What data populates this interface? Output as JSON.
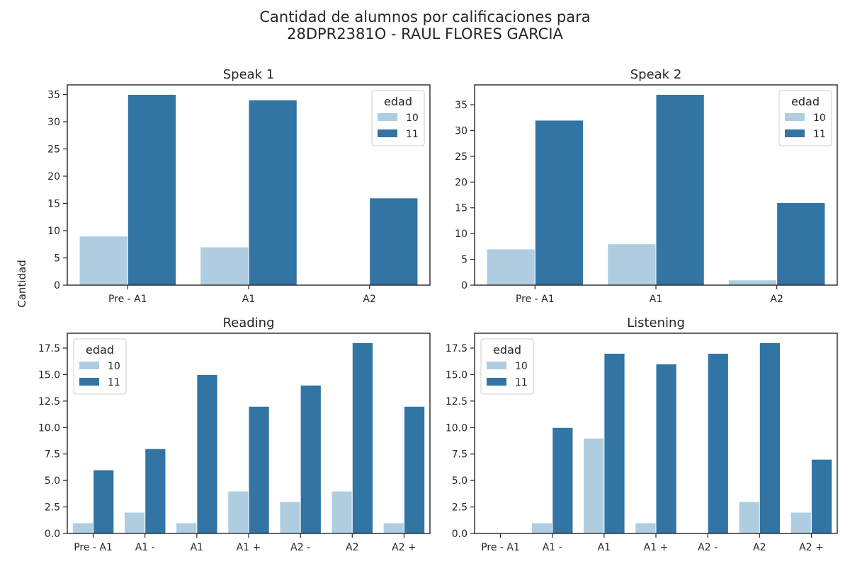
{
  "figure": {
    "title_line1": "Cantidad de alumnos por calificaciones para",
    "title_line2": "28DPR2381O - RAUL FLORES GARCIA",
    "ylabel": "Cantidad"
  },
  "colors": {
    "age_10": "#aecde1",
    "age_11": "#3274a4"
  },
  "chart_data": [
    {
      "type": "bar",
      "title": "Speak 1",
      "categories": [
        "Pre - A1",
        "A1",
        "A2"
      ],
      "series": [
        {
          "name": "10",
          "values": [
            9,
            7,
            0
          ]
        },
        {
          "name": "11",
          "values": [
            35,
            34,
            16
          ]
        }
      ],
      "ylim": [
        0,
        36.75
      ],
      "yticks": [
        0,
        5,
        10,
        15,
        20,
        25,
        30,
        35
      ],
      "legend_title": "edad",
      "legend_position": "top-right"
    },
    {
      "type": "bar",
      "title": "Speak 2",
      "categories": [
        "Pre - A1",
        "A1",
        "A2"
      ],
      "series": [
        {
          "name": "10",
          "values": [
            7,
            8,
            1
          ]
        },
        {
          "name": "11",
          "values": [
            32,
            37,
            16
          ]
        }
      ],
      "ylim": [
        0,
        38.85
      ],
      "yticks": [
        0,
        5,
        10,
        15,
        20,
        25,
        30,
        35
      ],
      "legend_title": "edad",
      "legend_position": "top-right"
    },
    {
      "type": "bar",
      "title": "Reading",
      "categories": [
        "Pre - A1",
        "A1 -",
        "A1",
        "A1 +",
        "A2 -",
        "A2",
        "A2 +"
      ],
      "series": [
        {
          "name": "10",
          "values": [
            1,
            2,
            1,
            4,
            3,
            4,
            1
          ]
        },
        {
          "name": "11",
          "values": [
            6,
            8,
            15,
            12,
            14,
            18,
            12
          ]
        }
      ],
      "ylim": [
        0,
        18.9
      ],
      "yticks": [
        0,
        2.5,
        5,
        7.5,
        10,
        12.5,
        15,
        17.5
      ],
      "legend_title": "edad",
      "legend_position": "top-left"
    },
    {
      "type": "bar",
      "title": "Listening",
      "categories": [
        "Pre - A1",
        "A1 -",
        "A1",
        "A1 +",
        "A2 -",
        "A2",
        "A2 +"
      ],
      "series": [
        {
          "name": "10",
          "values": [
            0,
            1,
            9,
            1,
            0,
            3,
            2
          ]
        },
        {
          "name": "11",
          "values": [
            0,
            10,
            17,
            16,
            17,
            18,
            7
          ]
        }
      ],
      "ylim": [
        0,
        18.9
      ],
      "yticks": [
        0,
        2.5,
        5,
        7.5,
        10,
        12.5,
        15,
        17.5
      ],
      "legend_title": "edad",
      "legend_position": "top-left"
    }
  ]
}
